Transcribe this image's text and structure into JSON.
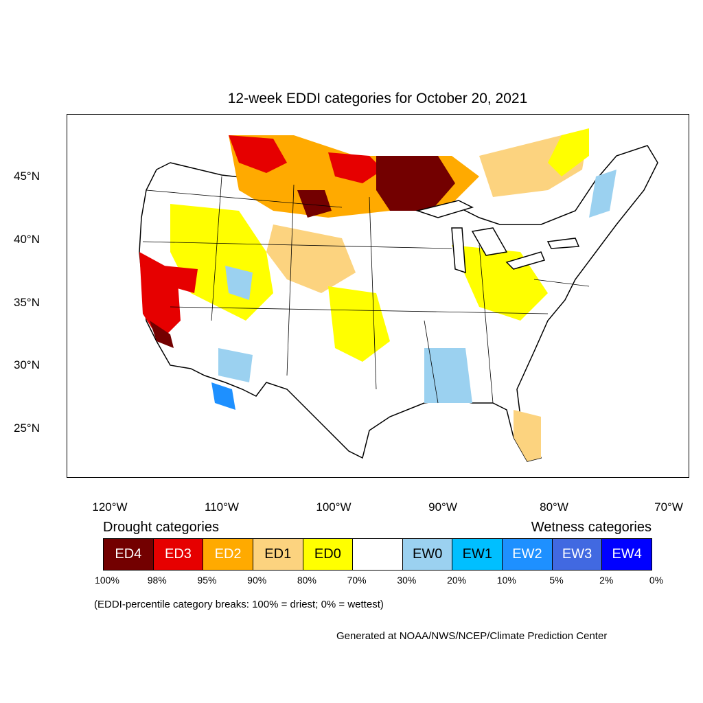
{
  "title": "12-week EDDI categories for October 20, 2021",
  "lat_labels": [
    "45°N",
    "40°N",
    "35°N",
    "30°N",
    "25°N"
  ],
  "lon_labels": [
    "120°W",
    "110°W",
    "100°W",
    "90°W",
    "80°W",
    "70°W"
  ],
  "legend": {
    "drought_heading": "Drought categories",
    "wetness_heading": "Wetness categories",
    "categories": [
      {
        "label": "ED4",
        "color": "#730000",
        "text_color": "#ffffff"
      },
      {
        "label": "ED3",
        "color": "#e60000",
        "text_color": "#ffffff"
      },
      {
        "label": "ED2",
        "color": "#ffaa00",
        "text_color": "#ffffff"
      },
      {
        "label": "ED1",
        "color": "#fcd37f",
        "text_color": "#000000"
      },
      {
        "label": "ED0",
        "color": "#ffff00",
        "text_color": "#000000"
      },
      {
        "label": "",
        "color": "#ffffff",
        "text_color": "#000000"
      },
      {
        "label": "EW0",
        "color": "#9bd1f0",
        "text_color": "#000000"
      },
      {
        "label": "EW1",
        "color": "#00bfff",
        "text_color": "#000000"
      },
      {
        "label": "EW2",
        "color": "#1e90ff",
        "text_color": "#ffffff"
      },
      {
        "label": "EW3",
        "color": "#4169e1",
        "text_color": "#ffffff"
      },
      {
        "label": "EW4",
        "color": "#0000ff",
        "text_color": "#ffffff"
      }
    ],
    "breaks": [
      "100%",
      "98%",
      "95%",
      "90%",
      "80%",
      "70%",
      "30%",
      "20%",
      "10%",
      "5%",
      "2%",
      "0%"
    ]
  },
  "note": "(EDDI-percentile category breaks: 100% = driest; 0% = wettest)",
  "credit": "Generated at NOAA/NWS/NCEP/Climate Prediction Center"
}
